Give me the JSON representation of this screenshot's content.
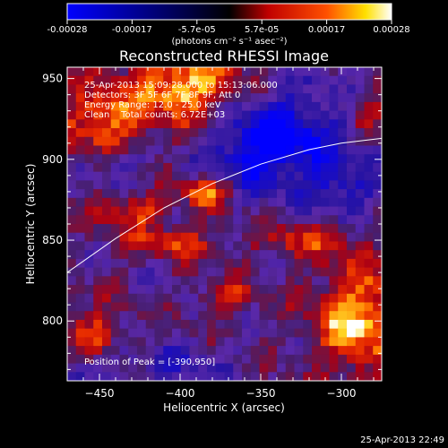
{
  "chart_data": {
    "type": "heatmap",
    "title": "Reconstructed RHESSI Image",
    "xlabel": "Heliocentric X (arcsec)",
    "ylabel": "Heliocentric Y (arcsec)",
    "xlim": [
      -470,
      -275
    ],
    "ylim": [
      763,
      957
    ],
    "xticks": [
      -450,
      -400,
      -350,
      -300
    ],
    "yticks": [
      800,
      850,
      900,
      950
    ],
    "colorbar": {
      "min": -0.00028,
      "max": 0.00028,
      "ticks": [
        "-0.00028",
        "-0.00017",
        "-5.7e-05",
        "5.7e-05",
        "0.00017",
        "0.00028"
      ],
      "units_label": "(photons cm⁻² s⁻¹ asec⁻²)",
      "colormap": [
        "#0000ff",
        "#000000",
        "#ff0000",
        "#ffff00",
        "#ffffff"
      ]
    },
    "annotations": [
      "25-Apr-2013 15:09:28.000 to 15:13:06.000",
      "Detectors: 3F 5F 6F 7F 8F 9F, Att 0",
      "Energy Range: 12.0 - 25.0 keV",
      "Clean    Total counts: 6.72E+03"
    ],
    "peak_label": "Position of Peak = [-390,950]",
    "peak": [
      -390,
      950
    ],
    "limb_curve": [
      [
        -470,
        830
      ],
      [
        -440,
        851
      ],
      [
        -410,
        870
      ],
      [
        -380,
        885
      ],
      [
        -350,
        897
      ],
      [
        -320,
        906
      ],
      [
        -300,
        910
      ],
      [
        -275,
        913
      ]
    ],
    "hot_regions": [
      {
        "x": -395,
        "y": 945,
        "rx": 32,
        "ry": 22,
        "amp": 1.0
      },
      {
        "x": -448,
        "y": 925,
        "rx": 25,
        "ry": 22,
        "amp": 0.75
      },
      {
        "x": -383,
        "y": 880,
        "rx": 16,
        "ry": 9,
        "amp": 0.8
      },
      {
        "x": -430,
        "y": 868,
        "rx": 22,
        "ry": 10,
        "amp": 0.6
      },
      {
        "x": -405,
        "y": 848,
        "rx": 30,
        "ry": 9,
        "amp": 0.55
      },
      {
        "x": -290,
        "y": 800,
        "rx": 26,
        "ry": 32,
        "amp": 0.95
      },
      {
        "x": -320,
        "y": 850,
        "rx": 30,
        "ry": 12,
        "amp": 0.55
      },
      {
        "x": -455,
        "y": 790,
        "rx": 20,
        "ry": 18,
        "amp": 0.6
      },
      {
        "x": -370,
        "y": 815,
        "rx": 18,
        "ry": 9,
        "amp": 0.45
      },
      {
        "x": -285,
        "y": 930,
        "rx": 12,
        "ry": 14,
        "amp": 0.5
      }
    ],
    "cold_regions": [
      {
        "x": -330,
        "y": 915,
        "rx": 40,
        "ry": 30,
        "amp": 0.75
      },
      {
        "x": -355,
        "y": 905,
        "rx": 25,
        "ry": 25,
        "amp": 0.55
      },
      {
        "x": -300,
        "y": 880,
        "rx": 25,
        "ry": 18,
        "amp": 0.5
      },
      {
        "x": -460,
        "y": 770,
        "rx": 30,
        "ry": 15,
        "amp": 0.4
      },
      {
        "x": -440,
        "y": 895,
        "rx": 20,
        "ry": 12,
        "amp": 0.35
      },
      {
        "x": -400,
        "y": 775,
        "rx": 30,
        "ry": 12,
        "amp": 0.35
      }
    ]
  },
  "footer": {
    "timestamp": "25-Apr-2013 22:49"
  }
}
